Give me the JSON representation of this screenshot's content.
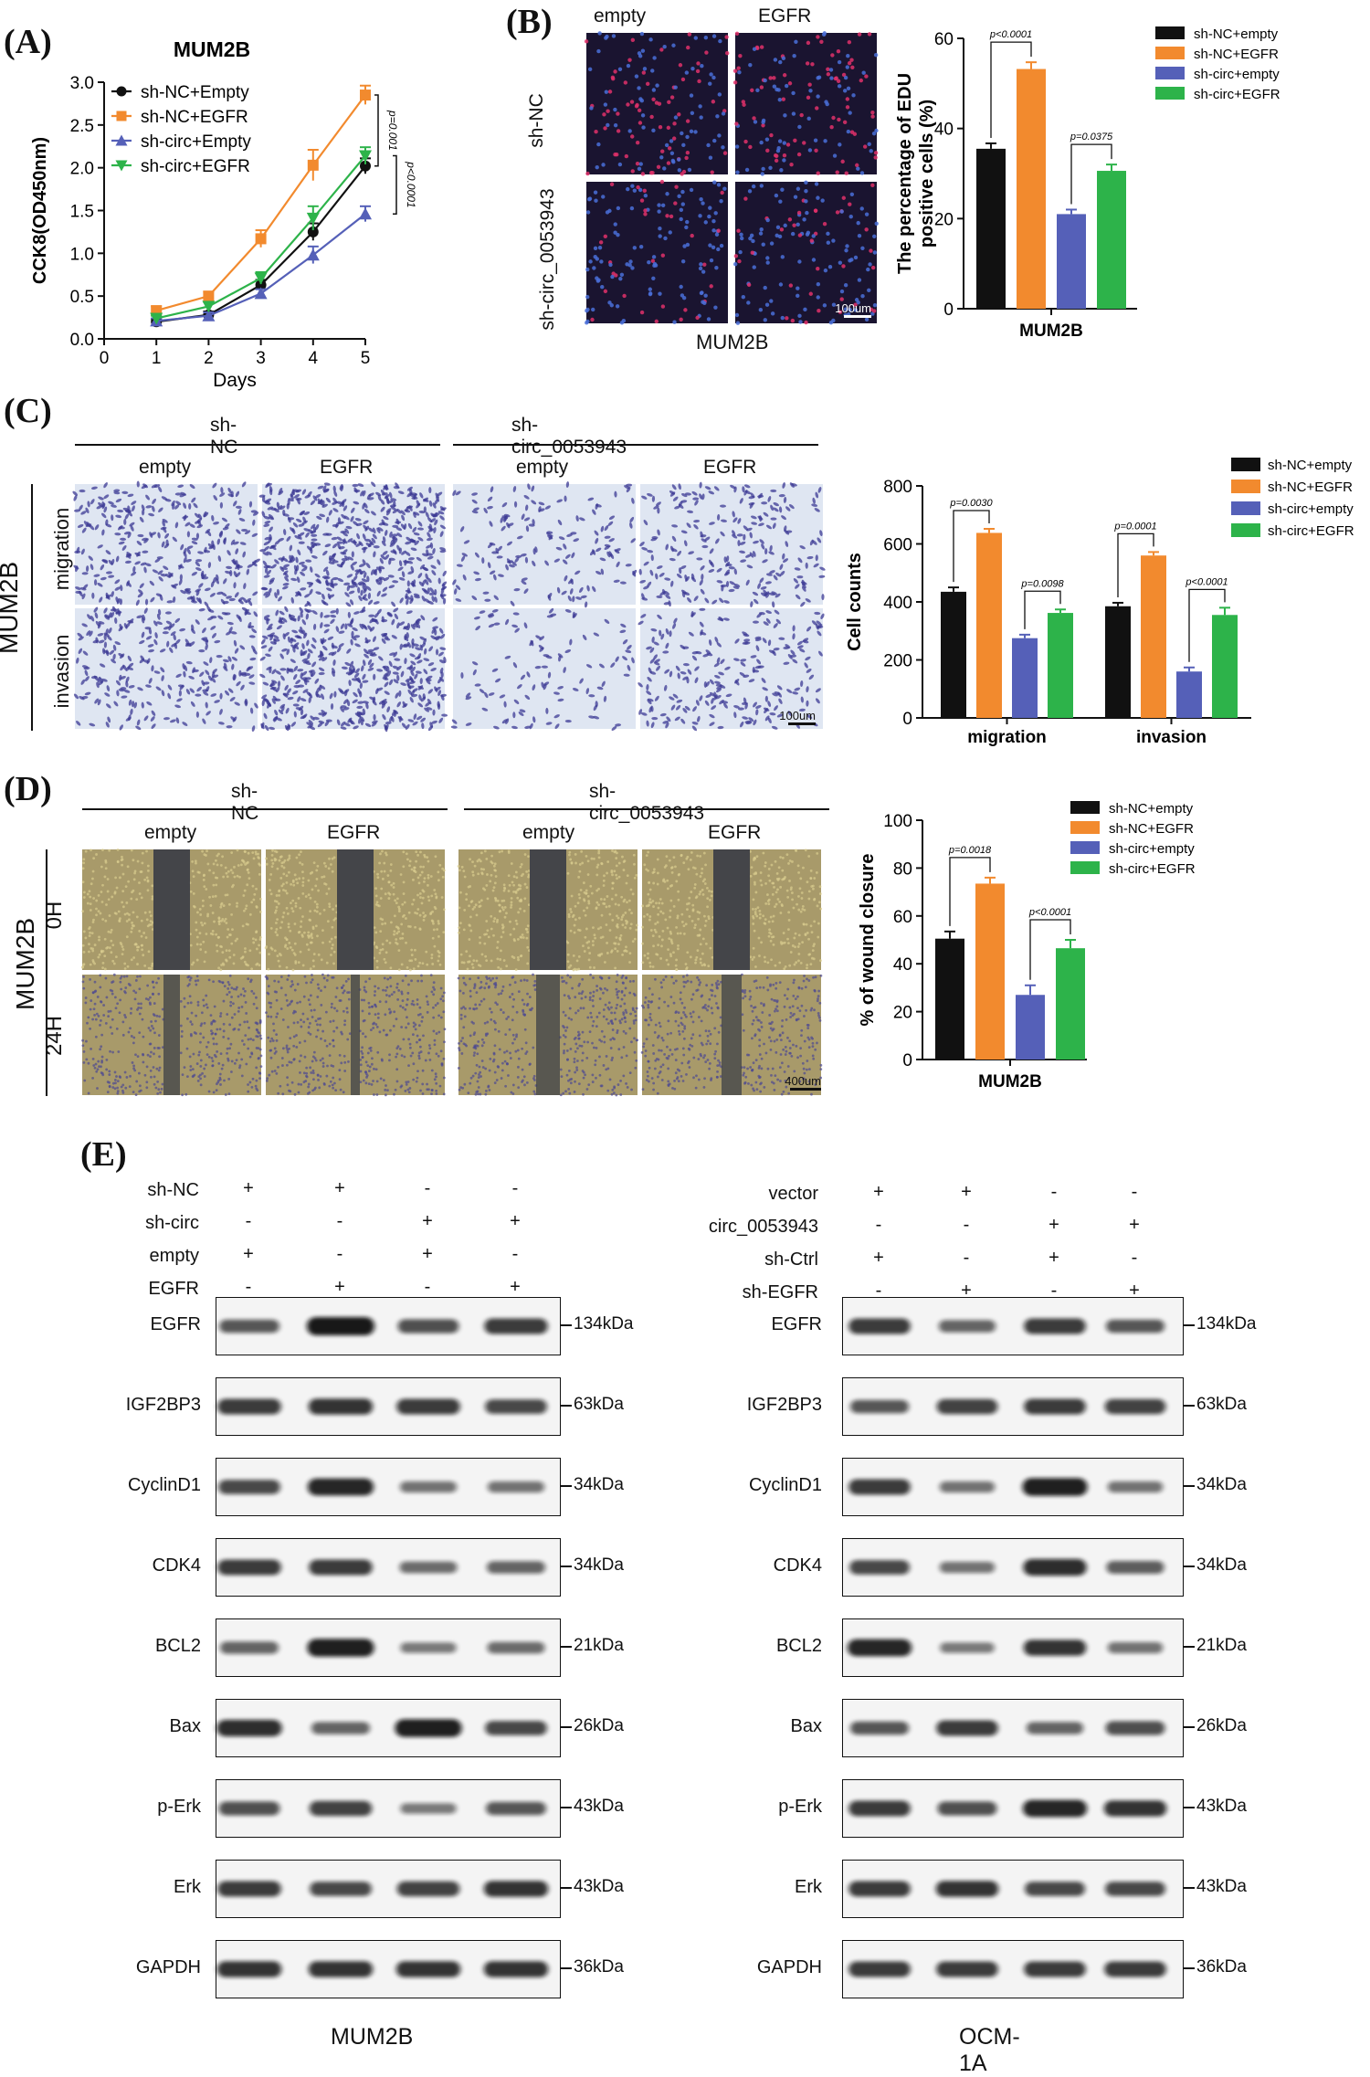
{
  "panels": {
    "A": "(A)",
    "B": "(B)",
    "C": "(C)",
    "D": "(D)",
    "E": "(E)"
  },
  "colors": {
    "black": "#111111",
    "orange": "#F28A2E",
    "blue": "#5560B8",
    "green": "#2DB34A",
    "edu_bg": "#1a1430",
    "transwell_bg": "#dfe6f2",
    "wound_bg": "#a89a6a",
    "wound_gap": "#3e4048"
  },
  "panelA": {
    "chart_data": {
      "type": "line",
      "title": "MUM2B",
      "xlabel": "Days",
      "ylabel": "CCK8(OD450nm)",
      "x": [
        1,
        2,
        3,
        4,
        5
      ],
      "xlim": [
        0,
        5
      ],
      "ylim": [
        0,
        3.0
      ],
      "xticks": [
        "0",
        "1",
        "2",
        "3",
        "4",
        "5"
      ],
      "yticks": [
        "0.0",
        "0.5",
        "1.0",
        "1.5",
        "2.0",
        "2.5",
        "3.0"
      ],
      "series": [
        {
          "name": "sh-NC+Empty",
          "color": "#111111",
          "marker": "circle",
          "values": [
            0.2,
            0.28,
            0.63,
            1.25,
            2.02
          ],
          "err": [
            0.03,
            0.04,
            0.06,
            0.1,
            0.09
          ]
        },
        {
          "name": "sh-NC+EGFR",
          "color": "#F28A2E",
          "marker": "square",
          "values": [
            0.33,
            0.5,
            1.17,
            2.03,
            2.85
          ],
          "err": [
            0.05,
            0.05,
            0.1,
            0.18,
            0.11
          ]
        },
        {
          "name": "sh-circ+Empty",
          "color": "#5560B8",
          "marker": "triangle",
          "values": [
            0.21,
            0.27,
            0.53,
            0.98,
            1.46
          ],
          "err": [
            0.03,
            0.04,
            0.05,
            0.1,
            0.09
          ]
        },
        {
          "name": "sh-circ+EGFR",
          "color": "#2DB34A",
          "marker": "triangle-down",
          "values": [
            0.24,
            0.38,
            0.71,
            1.41,
            2.14
          ],
          "err": [
            0.03,
            0.05,
            0.07,
            0.14,
            0.1
          ]
        }
      ],
      "annotations": [
        "p=0.001",
        "p<0.0001"
      ]
    }
  },
  "panelB": {
    "cols": [
      "empty",
      "EGFR"
    ],
    "rows": [
      "sh-NC",
      "sh-circ_0053943"
    ],
    "scale": "100um",
    "caption": "MUM2B",
    "chart_data": {
      "type": "bar",
      "ylabel": "The percentage of EDU positive cells (%)",
      "ylabel_lines": [
        "The percentage of EDU",
        "positive cells (%)"
      ],
      "xlabel": "MUM2B",
      "ylim": [
        0,
        60
      ],
      "yticks": [
        "0",
        "20",
        "40",
        "60"
      ],
      "series": [
        {
          "name": "sh-NC+empty",
          "color": "#111111",
          "values": [
            35.5
          ],
          "err": [
            1.2
          ]
        },
        {
          "name": "sh-NC+EGFR",
          "color": "#F28A2E",
          "values": [
            53.2
          ],
          "err": [
            1.5
          ]
        },
        {
          "name": "sh-circ+empty",
          "color": "#5560B8",
          "values": [
            21.0
          ],
          "err": [
            1.0
          ]
        },
        {
          "name": "sh-circ+EGFR",
          "color": "#2DB34A",
          "values": [
            30.6
          ],
          "err": [
            1.4
          ]
        }
      ],
      "annotations": [
        "p<0.0001",
        "p=0.0375"
      ]
    }
  },
  "panelC": {
    "groups": [
      "sh-NC",
      "sh-circ_0053943"
    ],
    "cols": [
      "empty",
      "EGFR",
      "empty",
      "EGFR"
    ],
    "rows": [
      "migration",
      "invasion"
    ],
    "cell_line": "MUM2B",
    "scale": "100um",
    "chart_data": {
      "type": "bar",
      "ylabel": "Cell counts",
      "categories": [
        "migration",
        "invasion"
      ],
      "ylim": [
        0,
        800
      ],
      "yticks": [
        "0",
        "200",
        "400",
        "600",
        "800"
      ],
      "series": [
        {
          "name": "sh-NC+empty",
          "color": "#111111",
          "values": [
            435,
            385
          ],
          "err": [
            15,
            12
          ]
        },
        {
          "name": "sh-NC+EGFR",
          "color": "#F28A2E",
          "values": [
            638,
            560
          ],
          "err": [
            14,
            12
          ]
        },
        {
          "name": "sh-circ+empty",
          "color": "#5560B8",
          "values": [
            275,
            160
          ],
          "err": [
            12,
            14
          ]
        },
        {
          "name": "sh-circ+EGFR",
          "color": "#2DB34A",
          "values": [
            362,
            355
          ],
          "err": [
            12,
            25
          ]
        }
      ],
      "annotations": [
        "p=0.0030",
        "p=0.0098",
        "p=0.0001",
        "p<0.0001"
      ]
    }
  },
  "panelD": {
    "groups": [
      "sh-NC",
      "sh-circ_0053943"
    ],
    "cols": [
      "empty",
      "EGFR",
      "empty",
      "EGFR"
    ],
    "rows": [
      "0H",
      "24H"
    ],
    "cell_line": "MUM2B",
    "scale": "400um",
    "chart_data": {
      "type": "bar",
      "ylabel": "% of wound closure",
      "xlabel": "MUM2B",
      "ylim": [
        0,
        100
      ],
      "yticks": [
        "0",
        "20",
        "40",
        "60",
        "80",
        "100"
      ],
      "series": [
        {
          "name": "sh-NC+empty",
          "color": "#111111",
          "values": [
            50.5
          ],
          "err": [
            3
          ]
        },
        {
          "name": "sh-NC+EGFR",
          "color": "#F28A2E",
          "values": [
            73.5
          ],
          "err": [
            2.5
          ]
        },
        {
          "name": "sh-circ+empty",
          "color": "#5560B8",
          "values": [
            27.0
          ],
          "err": [
            4
          ]
        },
        {
          "name": "sh-circ+EGFR",
          "color": "#2DB34A",
          "values": [
            46.5
          ],
          "err": [
            3.5
          ]
        }
      ],
      "annotations": [
        "p=0.0018",
        "p<0.0001"
      ]
    }
  },
  "panelE": {
    "left": {
      "caption": "MUM2B",
      "conditions": [
        {
          "label": "sh-NC",
          "signs": [
            "+",
            "+",
            "-",
            "-"
          ]
        },
        {
          "label": "sh-circ",
          "signs": [
            "-",
            "-",
            "+",
            "+"
          ]
        },
        {
          "label": "empty",
          "signs": [
            "+",
            "-",
            "+",
            "-"
          ]
        },
        {
          "label": "EGFR",
          "signs": [
            "-",
            "+",
            "-",
            "+"
          ]
        }
      ],
      "blots": [
        {
          "name": "EGFR",
          "kda": "134kDa",
          "intensity": [
            0.55,
            1.0,
            0.6,
            0.75
          ]
        },
        {
          "name": "IGF2BP3",
          "kda": "63kDa",
          "intensity": [
            0.75,
            0.8,
            0.75,
            0.65
          ]
        },
        {
          "name": "CyclinD1",
          "kda": "34kDa",
          "intensity": [
            0.65,
            0.9,
            0.35,
            0.35
          ]
        },
        {
          "name": "CDK4",
          "kda": "34kDa",
          "intensity": [
            0.75,
            0.75,
            0.4,
            0.45
          ]
        },
        {
          "name": "BCL2",
          "kda": "21kDa",
          "intensity": [
            0.45,
            0.95,
            0.3,
            0.4
          ]
        },
        {
          "name": "Bax",
          "kda": "26kDa",
          "intensity": [
            0.85,
            0.45,
            0.95,
            0.65
          ]
        },
        {
          "name": "p-Erk",
          "kda": "43kDa",
          "intensity": [
            0.6,
            0.7,
            0.3,
            0.55
          ]
        },
        {
          "name": "Erk",
          "kda": "43kDa",
          "intensity": [
            0.75,
            0.65,
            0.7,
            0.8
          ]
        },
        {
          "name": "GAPDH",
          "kda": "36kDa",
          "intensity": [
            0.8,
            0.8,
            0.8,
            0.8
          ]
        }
      ]
    },
    "right": {
      "caption": "OCM-1A",
      "conditions": [
        {
          "label": "vector",
          "signs": [
            "+",
            "+",
            "-",
            "-"
          ]
        },
        {
          "label": "circ_0053943",
          "signs": [
            "-",
            "-",
            "+",
            "+"
          ]
        },
        {
          "label": "sh-Ctrl",
          "signs": [
            "+",
            "-",
            "+",
            "-"
          ]
        },
        {
          "label": "sh-EGFR",
          "signs": [
            "-",
            "+",
            "-",
            "+"
          ]
        }
      ],
      "blots": [
        {
          "name": "EGFR",
          "kda": "134kDa",
          "intensity": [
            0.75,
            0.45,
            0.75,
            0.55
          ]
        },
        {
          "name": "IGF2BP3",
          "kda": "63kDa",
          "intensity": [
            0.55,
            0.7,
            0.75,
            0.7
          ]
        },
        {
          "name": "CyclinD1",
          "kda": "34kDa",
          "intensity": [
            0.75,
            0.35,
            0.95,
            0.35
          ]
        },
        {
          "name": "CDK4",
          "kda": "34kDa",
          "intensity": [
            0.65,
            0.35,
            0.85,
            0.5
          ]
        },
        {
          "name": "BCL2",
          "kda": "21kDa",
          "intensity": [
            0.9,
            0.3,
            0.8,
            0.35
          ]
        },
        {
          "name": "Bax",
          "kda": "26kDa",
          "intensity": [
            0.55,
            0.75,
            0.45,
            0.6
          ]
        },
        {
          "name": "p-Erk",
          "kda": "43kDa",
          "intensity": [
            0.75,
            0.6,
            0.9,
            0.8
          ]
        },
        {
          "name": "Erk",
          "kda": "43kDa",
          "intensity": [
            0.75,
            0.8,
            0.65,
            0.65
          ]
        },
        {
          "name": "GAPDH",
          "kda": "36kDa",
          "intensity": [
            0.75,
            0.75,
            0.75,
            0.75
          ]
        }
      ]
    }
  }
}
